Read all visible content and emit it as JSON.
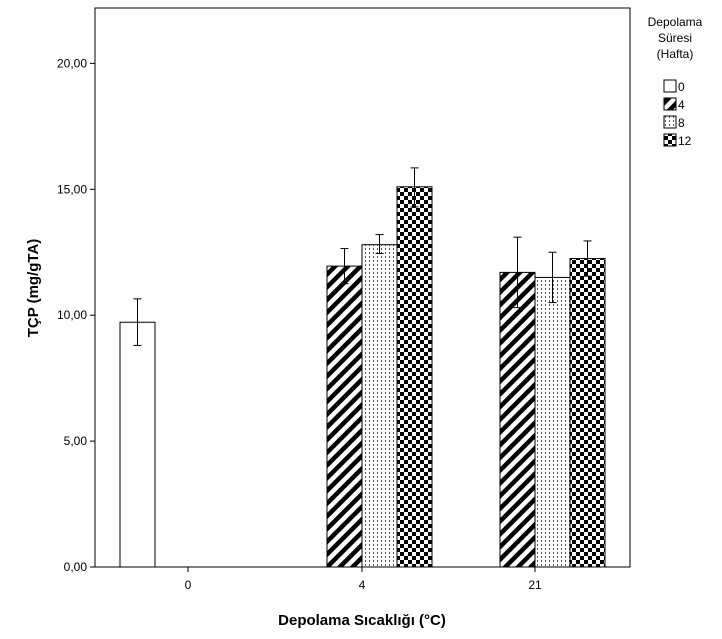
{
  "chart_data": {
    "type": "bar",
    "categories": [
      "0",
      "4",
      "21"
    ],
    "series": [
      {
        "name": "0",
        "values": [
          9.72,
          null,
          null
        ],
        "err_low": [
          8.8,
          null,
          null
        ],
        "err_high": [
          10.65,
          null,
          null
        ],
        "pattern": "empty"
      },
      {
        "name": "4",
        "values": [
          null,
          11.95,
          11.7
        ],
        "err_low": [
          null,
          11.25,
          10.3
        ],
        "err_high": [
          null,
          12.65,
          13.1
        ],
        "pattern": "diagonal"
      },
      {
        "name": "8",
        "values": [
          null,
          12.8,
          11.5
        ],
        "err_low": [
          null,
          12.45,
          10.5
        ],
        "err_high": [
          null,
          13.2,
          12.5
        ],
        "pattern": "dots"
      },
      {
        "name": "12",
        "values": [
          null,
          15.1,
          12.25
        ],
        "err_low": [
          null,
          14.3,
          11.55
        ],
        "err_high": [
          null,
          15.85,
          12.95
        ],
        "pattern": "checker"
      }
    ],
    "xlabel": "Depolama Sıcaklığı (°C)",
    "ylabel": "TÇP (mg/gTA)",
    "ylim": [
      0,
      22.2
    ],
    "yticks": [
      0,
      5,
      10,
      15,
      20
    ],
    "ytick_labels": [
      "0,00",
      "5,00",
      "10,00",
      "15,00",
      "20,00"
    ],
    "grid": false,
    "legend": {
      "title_lines": [
        "Depolama",
        "Süresi",
        "(Hafta)"
      ],
      "position": "top-right"
    },
    "colors": {
      "bar_edge": "#000000",
      "fill": "#000000",
      "background": "#ffffff"
    }
  }
}
